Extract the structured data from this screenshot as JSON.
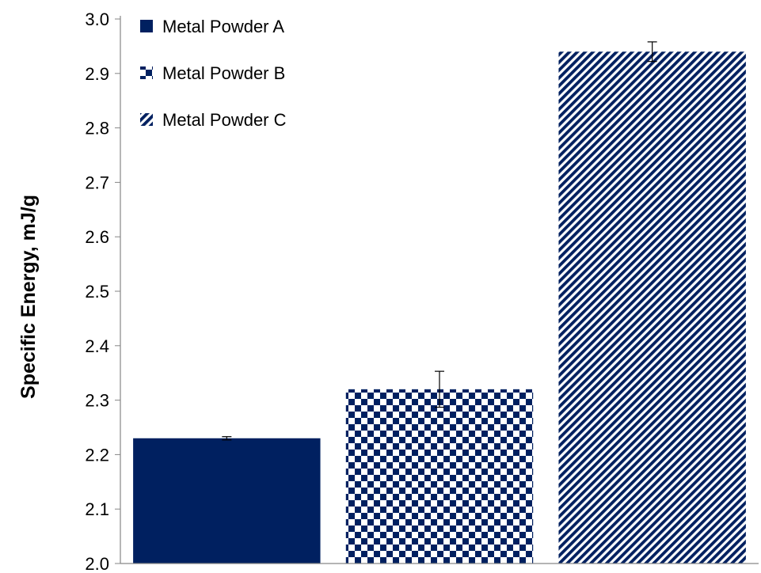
{
  "chart_data": {
    "type": "bar",
    "title": "",
    "xlabel": "",
    "ylabel": "Specific Energy, mJ/g",
    "ylim": [
      2.0,
      3.0
    ],
    "yticks": [
      "2.0",
      "2.1",
      "2.2",
      "2.3",
      "2.4",
      "2.5",
      "2.6",
      "2.7",
      "2.8",
      "2.9",
      "3.0"
    ],
    "grid": false,
    "legend_position": "top-left",
    "series": [
      {
        "name": "Metal Powder A",
        "value": 2.23,
        "error": 0.003,
        "color": "#002060",
        "pattern": "solid"
      },
      {
        "name": "Metal Powder B",
        "value": 2.32,
        "error": 0.033,
        "color": "#002060",
        "pattern": "checker"
      },
      {
        "name": "Metal Powder C",
        "value": 2.94,
        "error": 0.018,
        "color": "#002060",
        "pattern": "diagonal"
      }
    ]
  }
}
